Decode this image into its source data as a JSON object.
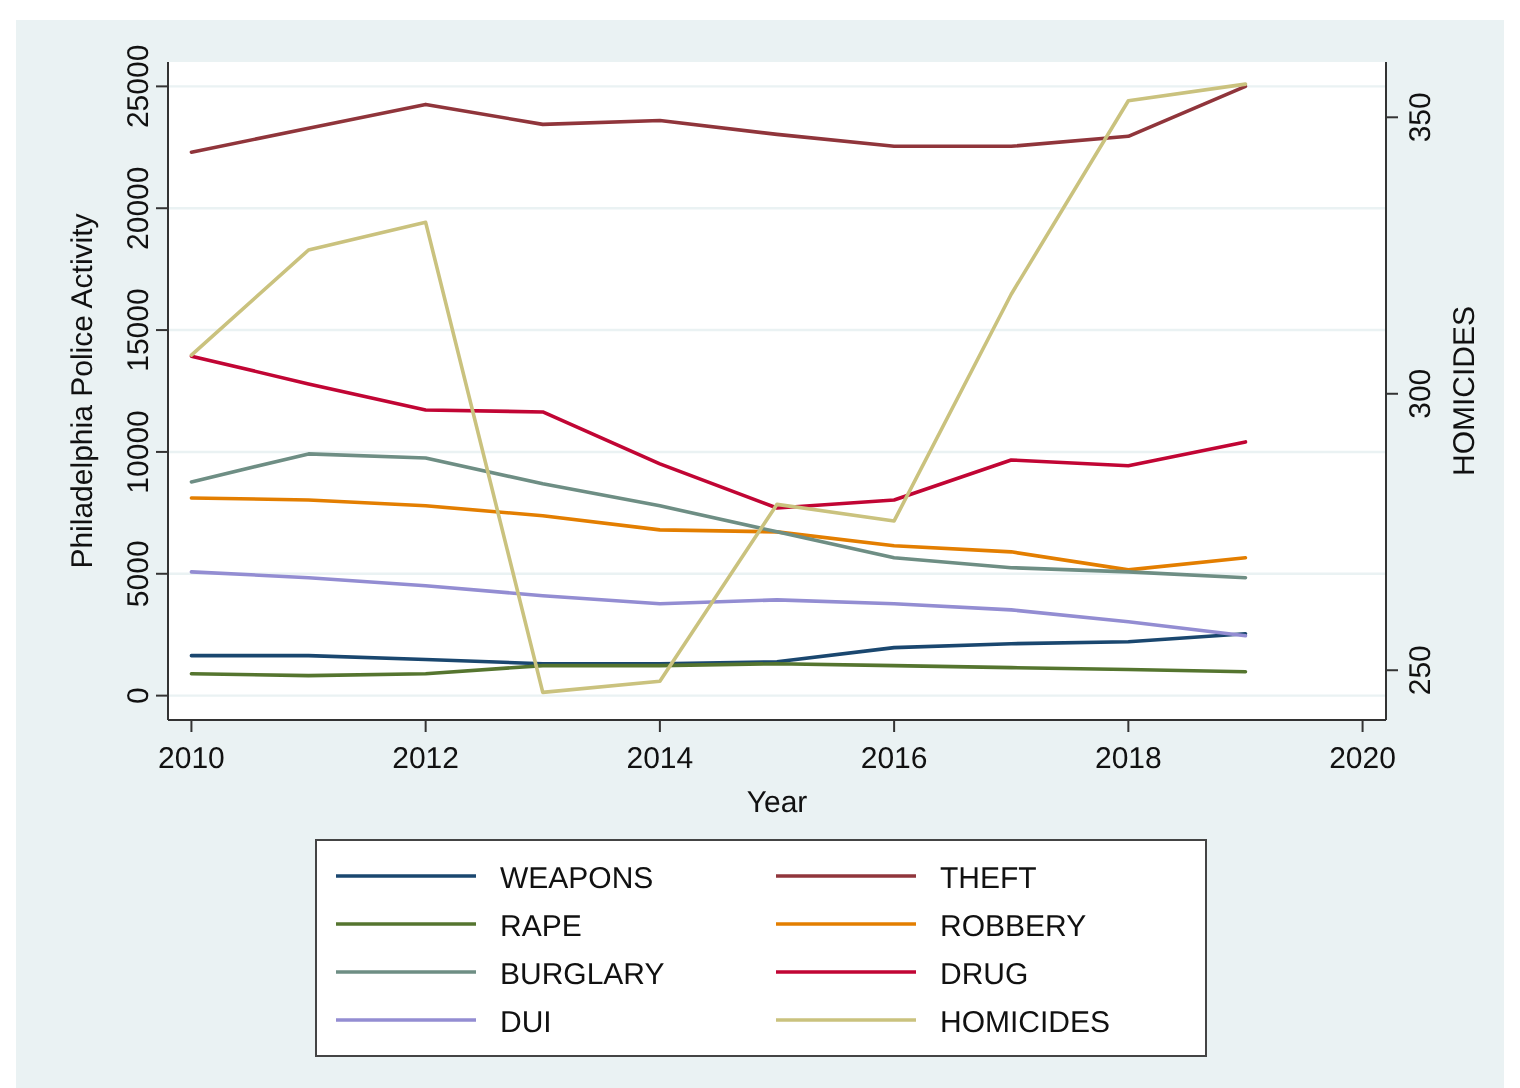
{
  "chart_data": {
    "type": "line",
    "xlabel": "Year",
    "ylabel": "Philadelphia Police Activity",
    "y2label": "HOMICIDES",
    "x": [
      2010,
      2011,
      2012,
      2013,
      2014,
      2015,
      2016,
      2017,
      2018,
      2019
    ],
    "xlim": [
      2009.8,
      2020.2
    ],
    "xticks": [
      2010,
      2012,
      2014,
      2016,
      2018,
      2020
    ],
    "ylim": [
      -1000,
      26000
    ],
    "yticks": [
      0,
      5000,
      10000,
      15000,
      20000,
      25000
    ],
    "y2lim": [
      241,
      360
    ],
    "y2ticks": [
      250,
      300,
      350
    ],
    "grid": "y",
    "legend": "bottom",
    "marker": "none",
    "line_style": "solid",
    "series": [
      {
        "name": "WEAPONS",
        "color": "#1a476f",
        "values": [
          1640,
          1640,
          1480,
          1310,
          1310,
          1390,
          1970,
          2130,
          2210,
          2540
        ]
      },
      {
        "name": "THEFT",
        "color": "#90353b",
        "values": [
          22300,
          23280,
          24260,
          23440,
          23600,
          23030,
          22540,
          22540,
          22950,
          25000
        ]
      },
      {
        "name": "RAPE",
        "color": "#55752f",
        "values": [
          900,
          820,
          900,
          1230,
          1230,
          1310,
          1230,
          1150,
          1070,
          980
        ]
      },
      {
        "name": "ROBBERY",
        "color": "#e37e00",
        "values": [
          8110,
          8030,
          7790,
          7380,
          6800,
          6720,
          6150,
          5900,
          5160,
          5660
        ]
      },
      {
        "name": "BURGLARY",
        "color": "#6e8e84",
        "values": [
          8770,
          9920,
          9750,
          8690,
          7790,
          6720,
          5660,
          5250,
          5080,
          4840
        ]
      },
      {
        "name": "DRUG",
        "color": "#c10534",
        "values": [
          13930,
          12790,
          11720,
          11640,
          9510,
          7700,
          8030,
          9670,
          9430,
          10410
        ]
      },
      {
        "name": "DUI",
        "color": "#938dd2",
        "values": [
          5080,
          4840,
          4510,
          4100,
          3770,
          3930,
          3770,
          3520,
          3030,
          2460
        ]
      },
      {
        "name": "HOMICIDES",
        "color": "#cac27e",
        "axis": "y2",
        "values": [
          307,
          326,
          331,
          246,
          248,
          280,
          277,
          318,
          353,
          356
        ]
      }
    ]
  }
}
